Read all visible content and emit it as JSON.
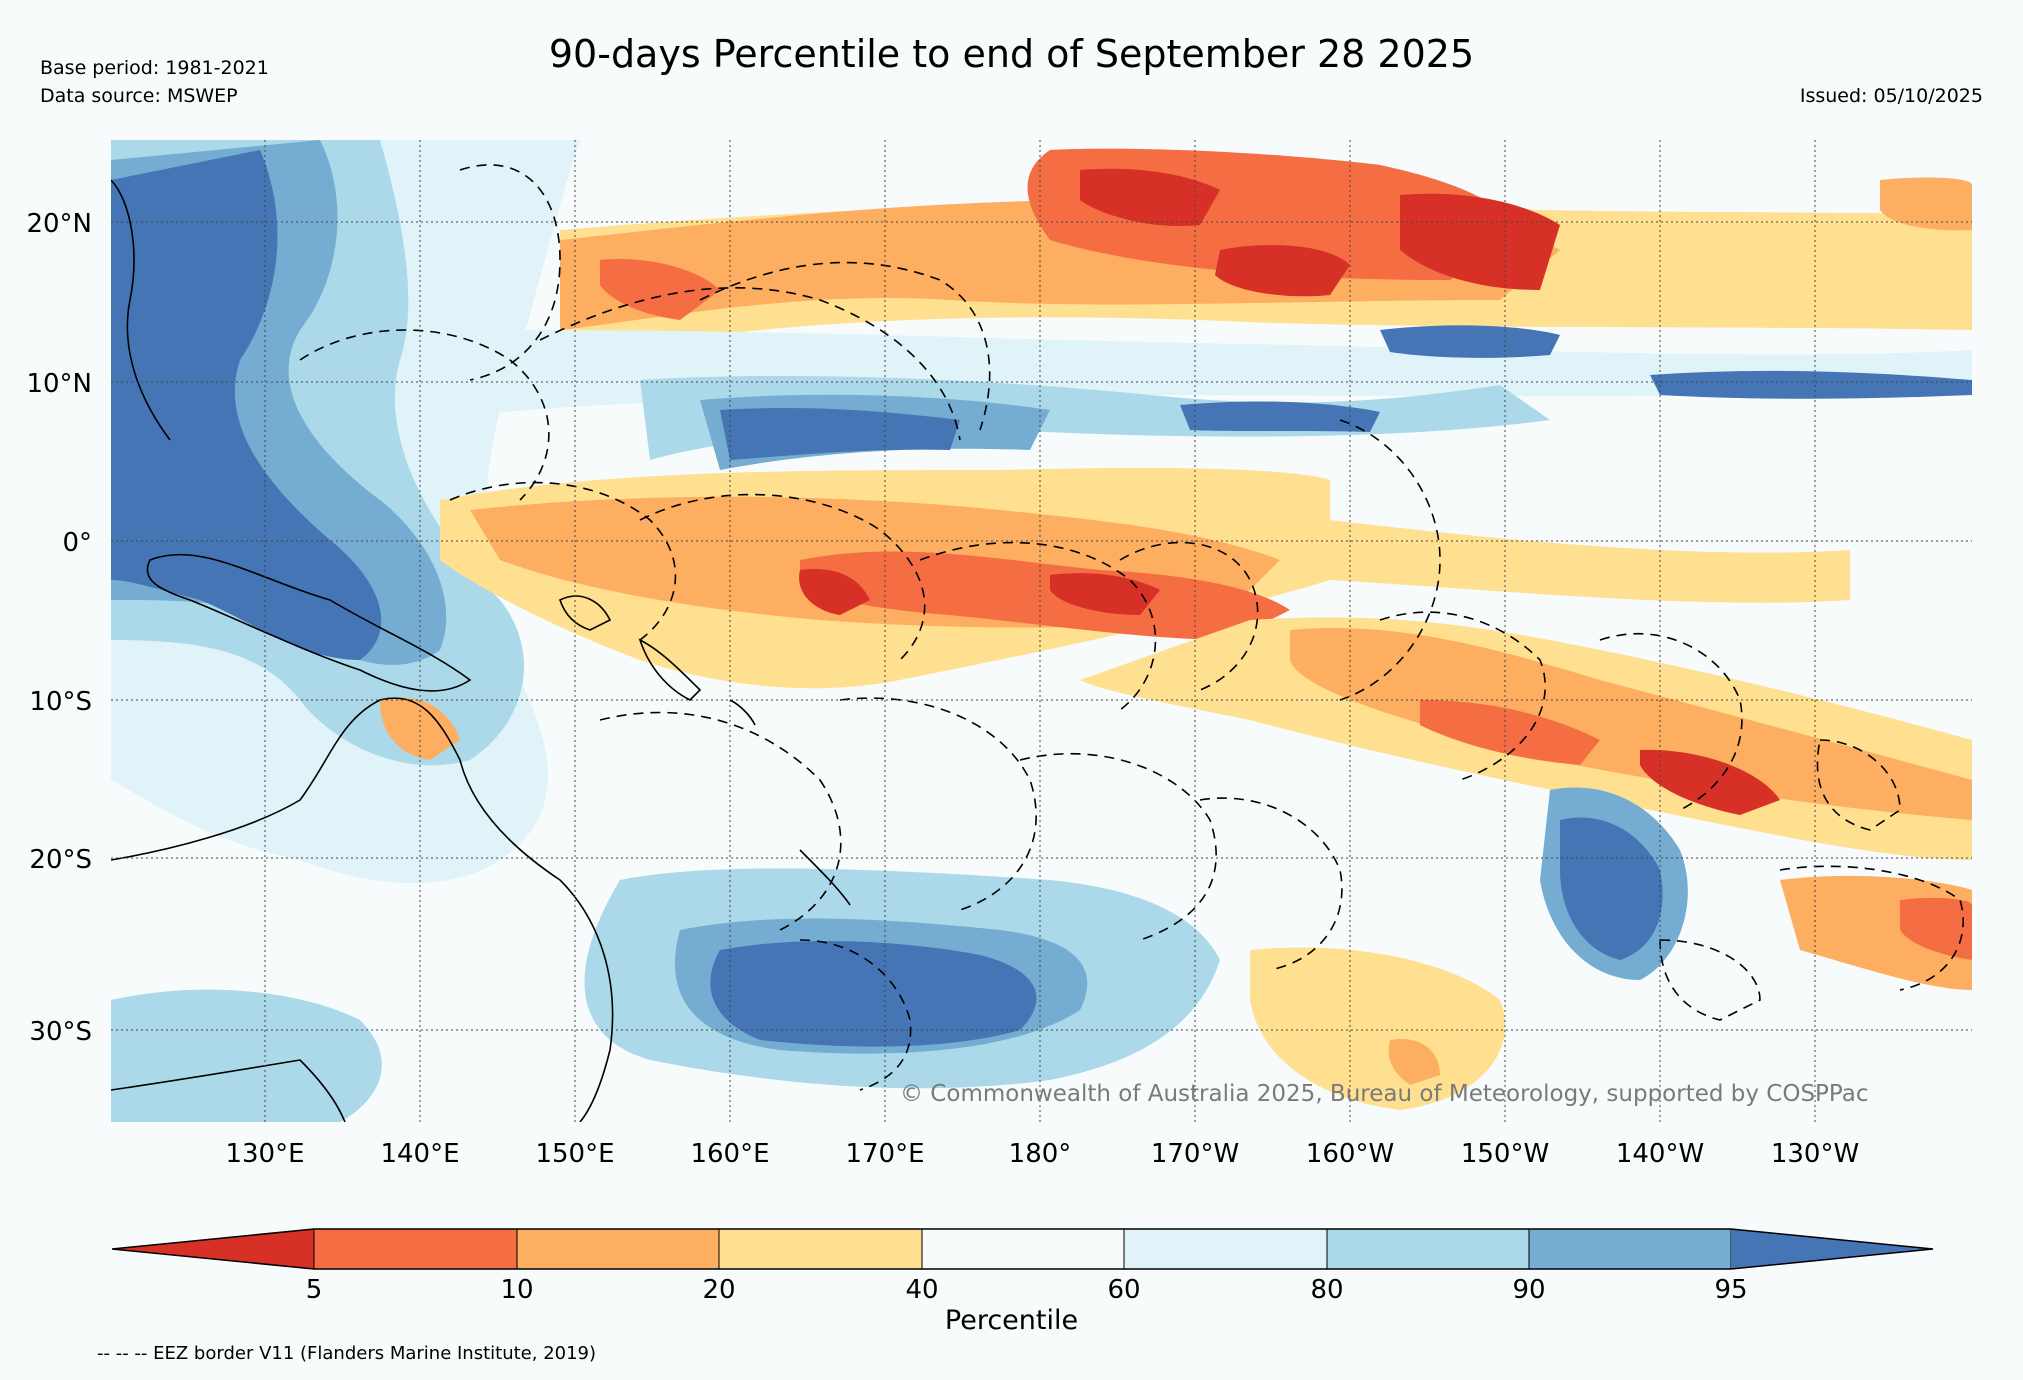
{
  "header": {
    "base_period": "Base period: 1981-2021",
    "data_source": "Data source: MSWEP",
    "title": "90-days Percentile to end of September 28 2025",
    "issued": "Issued: 05/10/2025"
  },
  "map": {
    "lat_labels": [
      "20°N",
      "10°N",
      "0°",
      "10°S",
      "20°S",
      "30°S"
    ],
    "lon_labels": [
      "130°E",
      "140°E",
      "150°E",
      "160°E",
      "170°E",
      "180°",
      "170°W",
      "160°W",
      "150°W",
      "140°W",
      "130°W"
    ],
    "copyright": "© Commonwealth of Australia 2025, Bureau of Meteorology, supported by COSPPac"
  },
  "colorbar": {
    "label": "Percentile",
    "tick_labels": [
      "5",
      "10",
      "20",
      "40",
      "60",
      "80",
      "90",
      "95"
    ],
    "colors": [
      "#d73027",
      "#f46d43",
      "#fdae61",
      "#fee090",
      "#f7fbfc",
      "#e0f3f8",
      "#abd9e9",
      "#74add1",
      "#4575b4"
    ]
  },
  "footnote": "-- -- -- EEZ border V11 (Flanders Marine Institute, 2019)"
}
